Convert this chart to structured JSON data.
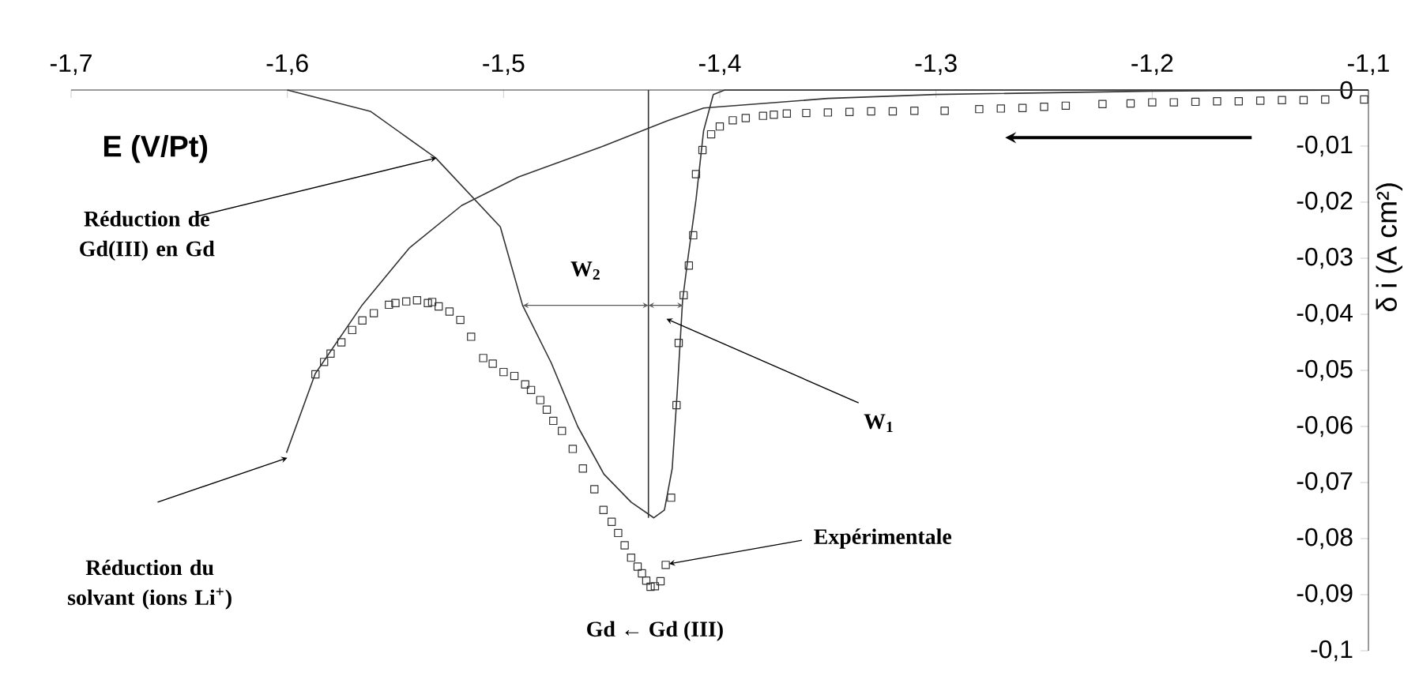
{
  "chart_data": {
    "type": "line",
    "xlabel": "E (V/Pt)",
    "ylabel": "δ i (A cm²)",
    "xlim": [
      -1.7,
      -1.1
    ],
    "ylim": [
      -0.1,
      0
    ],
    "xticks": [
      {
        "value": -1.7,
        "label": "-1,7"
      },
      {
        "value": -1.6,
        "label": "-1,6"
      },
      {
        "value": -1.5,
        "label": "-1,5"
      },
      {
        "value": -1.4,
        "label": "-1,4"
      },
      {
        "value": -1.3,
        "label": "-1,3"
      },
      {
        "value": -1.2,
        "label": "-1,2"
      },
      {
        "value": -1.1,
        "label": "-1,1"
      }
    ],
    "yticks": [
      0,
      {
        "value": -0.01,
        "label": "-0,01"
      },
      {
        "value": -0.02,
        "label": "-0,02"
      },
      {
        "value": -0.03,
        "label": "-0,03"
      },
      {
        "value": -0.04,
        "label": "-0,04"
      },
      {
        "value": -0.05,
        "label": "-0,05"
      },
      {
        "value": -0.06,
        "label": "-0,06"
      },
      {
        "value": -0.07,
        "label": "-0,07"
      },
      {
        "value": -0.08,
        "label": "-0,08"
      },
      {
        "value": -0.09,
        "label": "-0,09"
      },
      {
        "value": -0.1,
        "label": "-0,1"
      }
    ],
    "series": [
      {
        "type": "scatter",
        "marker": "square",
        "color": "#333333",
        "x": [
          -1.587,
          -1.583,
          -1.58,
          -1.575,
          -1.57,
          -1.5653,
          -1.56,
          -1.553,
          -1.55,
          -1.545,
          -1.54,
          -1.535,
          -1.533,
          -1.53,
          -1.525,
          -1.52,
          -1.515,
          -1.5094,
          -1.505,
          -1.5,
          -1.495,
          -1.49,
          -1.4873,
          -1.483,
          -1.48,
          -1.477,
          -1.473,
          -1.468,
          -1.4633,
          -1.458,
          -1.4538,
          -1.45,
          -1.447,
          -1.444,
          -1.441,
          -1.438,
          -1.436,
          -1.434,
          -1.432,
          -1.43,
          -1.4274,
          -1.425,
          -1.4225,
          -1.42,
          -1.419,
          -1.4167,
          -1.4143,
          -1.4123,
          -1.411,
          -1.408,
          -1.404,
          -1.4,
          -1.394,
          -1.388,
          -1.38,
          -1.375,
          -1.369,
          -1.36,
          -1.35,
          -1.34,
          -1.33,
          -1.32,
          -1.31,
          -1.296,
          -1.28,
          -1.27,
          -1.26,
          -1.25,
          -1.24,
          -1.223,
          -1.21,
          -1.2,
          -1.19,
          -1.18,
          -1.17,
          -1.16,
          -1.15,
          -1.14,
          -1.13,
          -1.12,
          -1.102
        ],
        "values": [
          -0.0507,
          -0.0485,
          -0.047,
          -0.045,
          -0.0428,
          -0.0411,
          -0.0398,
          -0.0383,
          -0.038,
          -0.0377,
          -0.0375,
          -0.038,
          -0.0378,
          -0.0386,
          -0.0395,
          -0.041,
          -0.044,
          -0.0478,
          -0.0488,
          -0.0503,
          -0.051,
          -0.0525,
          -0.0535,
          -0.0553,
          -0.057,
          -0.059,
          -0.0608,
          -0.064,
          -0.0675,
          -0.0712,
          -0.0749,
          -0.077,
          -0.079,
          -0.0812,
          -0.0834,
          -0.085,
          -0.0862,
          -0.0875,
          -0.0886,
          -0.0885,
          -0.0876,
          -0.0847,
          -0.0727,
          -0.0562,
          -0.0451,
          -0.0366,
          -0.0313,
          -0.0259,
          -0.015,
          -0.0107,
          -0.0079,
          -0.0065,
          -0.0054,
          -0.005,
          -0.0046,
          -0.0044,
          -0.0042,
          -0.0041,
          -0.004,
          -0.0039,
          -0.0038,
          -0.0038,
          -0.0037,
          -0.0037,
          -0.0034,
          -0.0033,
          -0.0032,
          -0.003,
          -0.0028,
          -0.0025,
          -0.0024,
          -0.0022,
          -0.0022,
          -0.0021,
          -0.002,
          -0.002,
          -0.0019,
          -0.0018,
          -0.0018,
          -0.0017,
          -0.0017
        ]
      },
      {
        "color": "#333333",
        "x": [
          -1.6,
          -1.5616,
          -1.5314,
          -1.5015,
          -1.4912,
          -1.4779,
          -1.4657,
          -1.4536,
          -1.441,
          -1.4305,
          -1.4256,
          -1.422,
          -1.4196,
          -1.4172,
          -1.4147,
          -1.411,
          -1.4075,
          -1.403,
          -1.3977,
          -1.1
        ],
        "values": [
          0,
          -0.0038,
          -0.0121,
          -0.0244,
          -0.0384,
          -0.0487,
          -0.06,
          -0.0685,
          -0.0735,
          -0.0763,
          -0.0749,
          -0.0675,
          -0.0534,
          -0.0375,
          -0.0299,
          -0.0196,
          -0.0073,
          -0.0008,
          0,
          0
        ]
      },
      {
        "color": "#333333",
        "x": [
          -1.6004,
          -1.5871,
          -1.5653,
          -1.5434,
          -1.5194,
          -1.493,
          -1.4546,
          -1.4243,
          -1.4074,
          -1.35,
          -1.3,
          -1.2,
          -1.1
        ],
        "values": [
          -0.0647,
          -0.0506,
          -0.0383,
          -0.0281,
          -0.0206,
          -0.0155,
          -0.0101,
          -0.0055,
          -0.0032,
          -0.0015,
          -0.0008,
          -0.0002,
          0
        ]
      },
      {
        "color": "#333333",
        "x": [
          -1.433,
          -1.433
        ],
        "values": [
          0,
          -0.0763
        ]
      }
    ],
    "annotations": [
      {
        "text": "Réduction de Gd(III) en Gd",
        "x": -1.531,
        "y": -0.0121
      },
      "Réduction du solvant (ions Li$^{+}$)",
      {
        "text": "Expérimentale",
        "x": -1.4235,
        "y": -0.0845
      },
      "W$_{1}$",
      "W$_{2}$",
      "Gd ← Gd (III)"
    ]
  }
}
